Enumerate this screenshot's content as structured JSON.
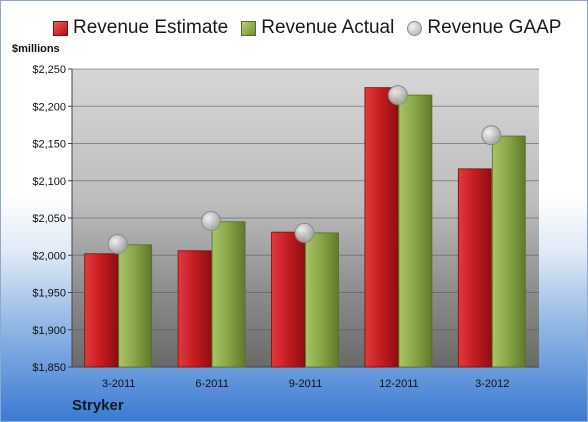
{
  "chart_data": {
    "type": "bar",
    "unit_label": "$millions",
    "categories": [
      "3-2011",
      "6-2011",
      "9-2011",
      "12-2011",
      "3-2012"
    ],
    "series": [
      {
        "name": "Revenue Estimate",
        "type": "bar",
        "color": "#c81e22",
        "values": [
          2002,
          2006,
          2031,
          2225,
          2116
        ]
      },
      {
        "name": "Revenue Actual",
        "type": "bar",
        "color": "#8aa849",
        "values": [
          2014,
          2045,
          2030,
          2215,
          2160
        ]
      },
      {
        "name": "Revenue GAAP",
        "type": "marker",
        "color": "#bfbfbf",
        "values": [
          2015,
          2046,
          2030,
          2215,
          2161
        ]
      }
    ],
    "ylim": [
      1850,
      2250
    ],
    "yticks": [
      1850,
      1900,
      1950,
      2000,
      2050,
      2100,
      2150,
      2200,
      2250
    ],
    "ytick_labels": [
      "$1,850",
      "$1,900",
      "$1,950",
      "$2,000",
      "$2,050",
      "$2,100",
      "$2,150",
      "$2,200",
      "$2,250"
    ],
    "grid": true,
    "legend_position": "top"
  },
  "company": "Stryker"
}
